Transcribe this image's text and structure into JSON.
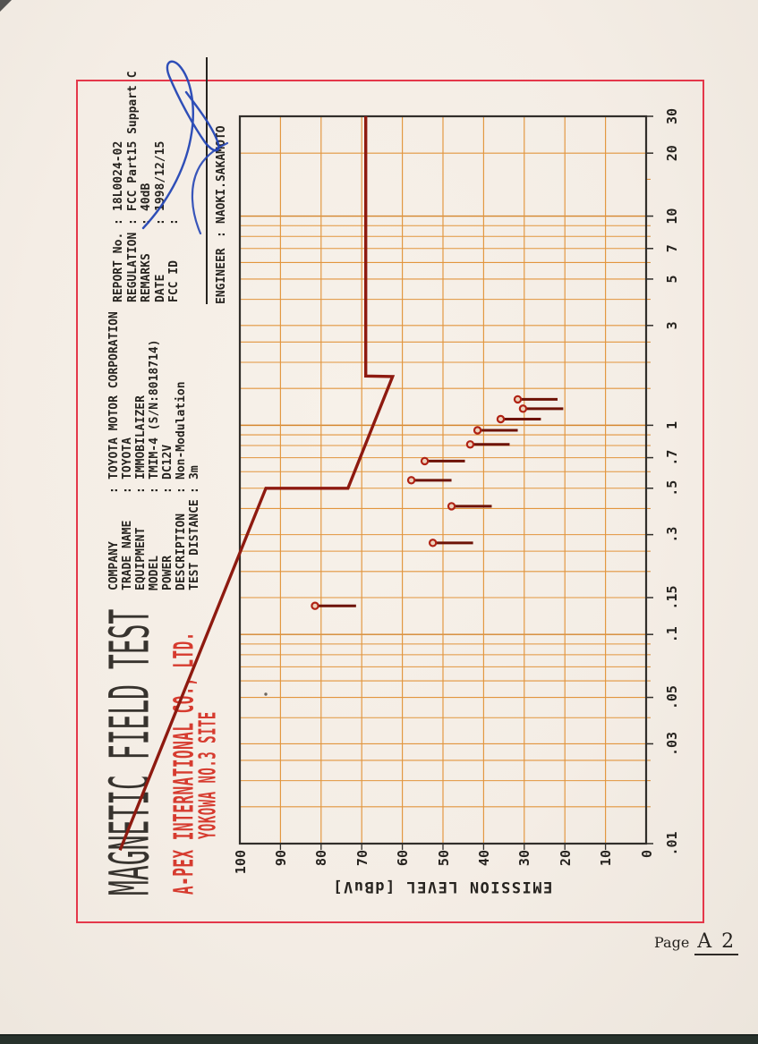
{
  "title": "MAGNETIC FIELD TEST",
  "lab": {
    "name": "A-PEX INTERNATIONAL CO., LTD.",
    "site": "YOKOWA NO.3 SITE"
  },
  "eut_info": {
    "rows": [
      {
        "label": "COMPANY",
        "value": "TOYOTA MOTOR CORPORATION"
      },
      {
        "label": "TRADE NAME",
        "value": "TOYOTA"
      },
      {
        "label": "EQUIPMENT",
        "value": "IMMOBILAIZER"
      },
      {
        "label": "MODEL",
        "value": "TMIM-4 (S/N:8018714)"
      },
      {
        "label": "POWER",
        "value": "DC12V"
      },
      {
        "label": "DESCRIPTION",
        "value": "Non-Modulation"
      },
      {
        "label": "TEST DISTANCE",
        "value": "3m"
      }
    ]
  },
  "report_info": {
    "rows": [
      {
        "label": "REPORT No.",
        "value": "18L0024-02"
      },
      {
        "label": "REGULATION",
        "value": "FCC Part15 Suppart C"
      },
      {
        "label": "REMARKS",
        "value": "40dB"
      },
      {
        "label": "DATE",
        "value": "1998/12/15"
      },
      {
        "label": "FCC ID",
        "value": ""
      }
    ]
  },
  "engineer": {
    "label": "ENGINEER",
    "value": "NAOKI.SAKAMOTO"
  },
  "page": {
    "prefix": "Page",
    "number": "A 2"
  },
  "chart_data": {
    "type": "stem",
    "title": "",
    "x_axis": {
      "scale": "log",
      "unit": "MHz",
      "min": 0.01,
      "max": 30,
      "tick_labels": [
        {
          "f": 0.01,
          "text": ".01"
        },
        {
          "f": 0.03,
          "text": ".03"
        },
        {
          "f": 0.05,
          "text": ".05"
        },
        {
          "f": 0.1,
          "text": ".1"
        },
        {
          "f": 0.15,
          "text": ".15"
        },
        {
          "f": 0.3,
          "text": ".3"
        },
        {
          "f": 0.5,
          "text": ".5"
        },
        {
          "f": 0.7,
          "text": ".7"
        },
        {
          "f": 1,
          "text": "1"
        },
        {
          "f": 3,
          "text": "3"
        },
        {
          "f": 5,
          "text": "5"
        },
        {
          "f": 7,
          "text": "7"
        },
        {
          "f": 10,
          "text": "10"
        },
        {
          "f": 20,
          "text": "20"
        },
        {
          "f": 30,
          "text": "30"
        }
      ],
      "gridlines": [
        0.01,
        0.015,
        0.02,
        0.025,
        0.03,
        0.04,
        0.05,
        0.06,
        0.07,
        0.08,
        0.09,
        0.1,
        0.15,
        0.2,
        0.25,
        0.3,
        0.4,
        0.5,
        0.6,
        0.7,
        0.8,
        0.9,
        1,
        1.5,
        2,
        2.5,
        3,
        4,
        5,
        6,
        7,
        8,
        9,
        10,
        20,
        30
      ],
      "stub_only_ticks": [
        15
      ]
    },
    "y_axis": {
      "label": "EMISSION LEVEL [dBuV]",
      "min": 0,
      "max": 100,
      "tick_step": 10
    },
    "limit_line": [
      {
        "f": 0.0093,
        "dB": 129.5
      },
      {
        "f": 0.5,
        "dB": 93.6
      },
      {
        "f": 0.5,
        "dB": 73.4
      },
      {
        "f": 1.71,
        "dB": 62.4
      },
      {
        "f": 1.72,
        "dB": 69.0
      },
      {
        "f": 30,
        "dB": 69.0
      }
    ],
    "points": [
      {
        "f": 0.137,
        "dB": 81.5,
        "stem_to_dB": 71.4
      },
      {
        "f": 0.274,
        "dB": 52.5,
        "stem_to_dB": 42.6
      },
      {
        "f": 0.41,
        "dB": 47.9,
        "stem_to_dB": 38.0
      },
      {
        "f": 0.546,
        "dB": 57.8,
        "stem_to_dB": 47.9
      },
      {
        "f": 0.674,
        "dB": 54.5,
        "stem_to_dB": 44.6
      },
      {
        "f": 0.81,
        "dB": 43.3,
        "stem_to_dB": 33.6
      },
      {
        "f": 0.946,
        "dB": 41.5,
        "stem_to_dB": 31.6
      },
      {
        "f": 1.07,
        "dB": 35.8,
        "stem_to_dB": 25.9
      },
      {
        "f": 1.2,
        "dB": 30.3,
        "stem_to_dB": 20.4
      },
      {
        "f": 1.33,
        "dB": 31.6,
        "stem_to_dB": 21.8
      }
    ],
    "grid_on": true,
    "legend": null
  },
  "colors": {
    "paper": "#f4ede5",
    "frame_red": "#e4374a",
    "grid": "#e2953d",
    "grid_major": "#d4862e",
    "plot_frame": "#312e2a",
    "limit": "#8e1a10",
    "stem": "#6d1206",
    "marker_stroke": "#b02315",
    "marker_fill": "#ecd3bd",
    "signature_blue": "#2344b4",
    "text_red": "#d63b2f",
    "ink": "#26231f"
  }
}
